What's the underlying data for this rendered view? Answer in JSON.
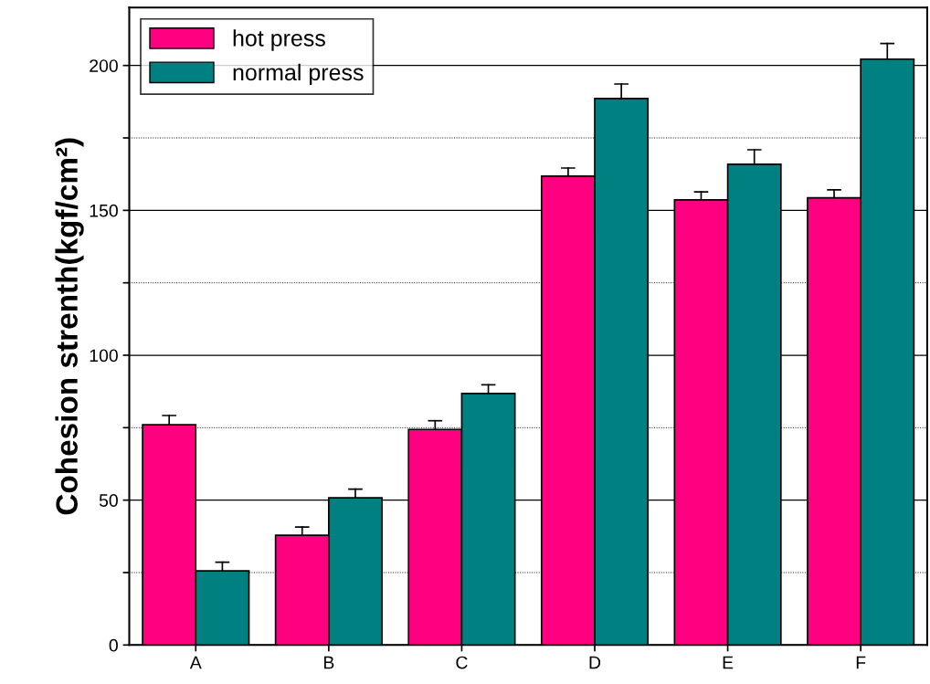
{
  "chart_data": {
    "type": "bar",
    "ylabel": "Cohesion strenth(kgf/cm²)",
    "categories": [
      "A",
      "B",
      "C",
      "D",
      "E",
      "F"
    ],
    "series": [
      {
        "name": "hot press",
        "color": "#ff0080",
        "values": [
          76.0,
          37.9,
          74.4,
          161.8,
          153.6,
          154.3
        ],
        "errors": [
          [
            76.0,
            79.2
          ],
          [
            37.9,
            40.7
          ],
          [
            74.4,
            77.4
          ],
          [
            161.8,
            164.6
          ],
          [
            153.6,
            156.4
          ],
          [
            154.3,
            157.1
          ]
        ]
      },
      {
        "name": "normal press",
        "color": "#008080",
        "values": [
          25.6,
          50.8,
          86.8,
          188.6,
          165.9,
          202.2
        ],
        "errors": [
          [
            25.6,
            28.6
          ],
          [
            50.8,
            53.8
          ],
          [
            86.8,
            89.8
          ],
          [
            188.6,
            193.6
          ],
          [
            165.9,
            170.9
          ],
          [
            202.2,
            207.6
          ]
        ]
      }
    ],
    "ylim": [
      0,
      220
    ],
    "yticks": [
      0,
      {
        "value": 25,
        "label": null
      },
      50,
      {
        "value": 75,
        "label": null
      },
      100,
      {
        "value": 125,
        "label": null
      },
      150,
      {
        "value": 175,
        "label": null
      },
      200
    ],
    "grid": "y",
    "legend": "top left"
  }
}
